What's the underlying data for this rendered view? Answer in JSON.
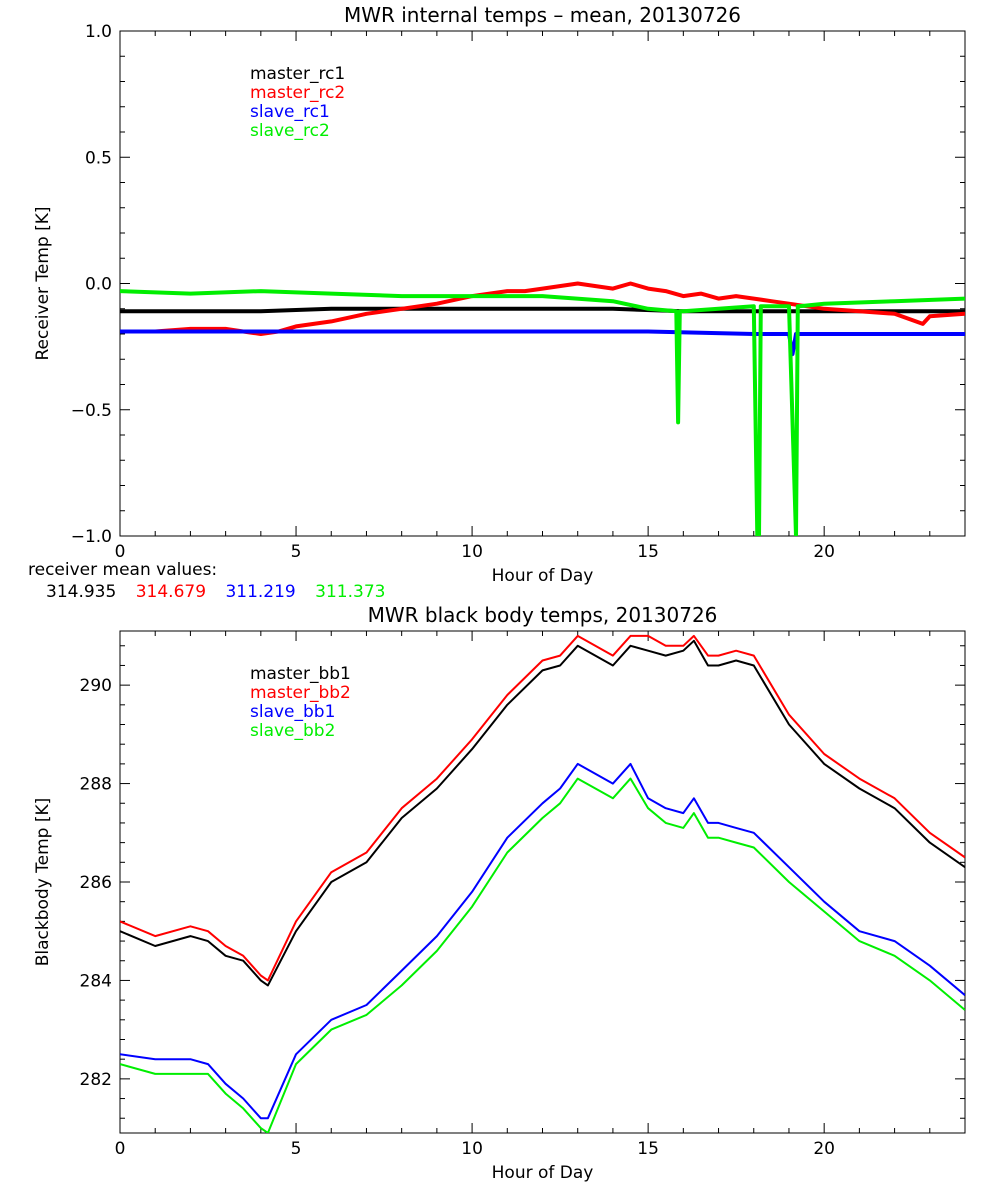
{
  "chart_data": [
    {
      "type": "line",
      "title": "MWR internal temps – mean, 20130726",
      "xlabel": "Hour of Day",
      "ylabel": "Receiver Temp [K]",
      "xlim": [
        0,
        24
      ],
      "ylim": [
        -1.0,
        1.0
      ],
      "xticks": [
        0,
        5,
        10,
        15,
        20
      ],
      "xtick_labels": [
        "0",
        "5",
        "10",
        "15",
        "20"
      ],
      "yticks": [
        -1.0,
        -0.5,
        0.0,
        0.5,
        1.0
      ],
      "ytick_labels": [
        "−1.0",
        "−0.5",
        "0.0",
        "0.5",
        "1.0"
      ],
      "grid": false,
      "legend_position": "top-left",
      "series": [
        {
          "name": "master_rc1",
          "color": "#000000",
          "x": [
            0,
            2,
            4,
            6,
            8,
            10,
            12,
            14,
            16,
            18,
            20,
            22,
            24
          ],
          "y": [
            -0.11,
            -0.11,
            -0.11,
            -0.1,
            -0.1,
            -0.1,
            -0.1,
            -0.1,
            -0.11,
            -0.11,
            -0.11,
            -0.11,
            -0.11
          ]
        },
        {
          "name": "master_rc2",
          "color": "#ff0000",
          "x": [
            0,
            1,
            2,
            3,
            3.5,
            4,
            4.5,
            5,
            6,
            7,
            8,
            9,
            10,
            11,
            11.5,
            12,
            13,
            14,
            14.5,
            15,
            15.5,
            16,
            16.5,
            17,
            17.5,
            18,
            18.5,
            19,
            20,
            21,
            22,
            22.8,
            23,
            24
          ],
          "y": [
            -0.19,
            -0.19,
            -0.18,
            -0.18,
            -0.19,
            -0.2,
            -0.19,
            -0.17,
            -0.15,
            -0.12,
            -0.1,
            -0.08,
            -0.05,
            -0.03,
            -0.03,
            -0.02,
            0.0,
            -0.02,
            0.0,
            -0.02,
            -0.03,
            -0.05,
            -0.04,
            -0.06,
            -0.05,
            -0.06,
            -0.07,
            -0.08,
            -0.1,
            -0.11,
            -0.12,
            -0.16,
            -0.13,
            -0.12
          ]
        },
        {
          "name": "slave_rc1",
          "color": "#0000ff",
          "x": [
            0,
            3,
            6,
            9,
            12,
            15,
            18,
            19,
            19.1,
            19.2,
            21,
            24
          ],
          "y": [
            -0.19,
            -0.19,
            -0.19,
            -0.19,
            -0.19,
            -0.19,
            -0.2,
            -0.2,
            -0.28,
            -0.2,
            -0.2,
            -0.2
          ]
        },
        {
          "name": "slave_rc2",
          "color": "#00ee00",
          "x": [
            0,
            2,
            4,
            6,
            8,
            10,
            12,
            14,
            15,
            15.8,
            15.85,
            15.9,
            16,
            17,
            18,
            18.1,
            18.15,
            18.2,
            19,
            19.2,
            19.25,
            19.3,
            20,
            22,
            24
          ],
          "y": [
            -0.03,
            -0.04,
            -0.03,
            -0.04,
            -0.05,
            -0.05,
            -0.05,
            -0.07,
            -0.1,
            -0.11,
            -0.55,
            -0.11,
            -0.11,
            -0.1,
            -0.09,
            -1.0,
            -1.0,
            -0.09,
            -0.09,
            -1.0,
            -0.09,
            -0.09,
            -0.08,
            -0.07,
            -0.06
          ]
        }
      ],
      "mean_label": "receiver mean values:",
      "mean_values": [
        {
          "text": "314.935",
          "color": "#000000"
        },
        {
          "text": "314.679",
          "color": "#ff0000"
        },
        {
          "text": "311.219",
          "color": "#0000ff"
        },
        {
          "text": "311.373",
          "color": "#00ee00"
        }
      ]
    },
    {
      "type": "line",
      "title": "MWR black body temps, 20130726",
      "xlabel": "Hour of Day",
      "ylabel": "Blackbody Temp [K]",
      "xlim": [
        0,
        24
      ],
      "ylim": [
        280.9,
        291.1
      ],
      "xticks": [
        0,
        5,
        10,
        15,
        20
      ],
      "xtick_labels": [
        "0",
        "5",
        "10",
        "15",
        "20"
      ],
      "yticks": [
        282,
        284,
        286,
        288,
        290
      ],
      "ytick_labels": [
        "282",
        "284",
        "286",
        "288",
        "290"
      ],
      "grid": false,
      "legend_position": "top-left",
      "series": [
        {
          "name": "master_bb1",
          "color": "#000000",
          "x": [
            0,
            1,
            2,
            2.5,
            3,
            3.5,
            4,
            4.2,
            5,
            6,
            7,
            8,
            9,
            10,
            11,
            12,
            12.5,
            13,
            14,
            14.5,
            15,
            15.5,
            16,
            16.3,
            16.7,
            17,
            17.5,
            18,
            19,
            20,
            21,
            22,
            23,
            24
          ],
          "y": [
            285.0,
            284.7,
            284.9,
            284.8,
            284.5,
            284.4,
            284.0,
            283.9,
            285.0,
            286.0,
            286.4,
            287.3,
            287.9,
            288.7,
            289.6,
            290.3,
            290.4,
            290.8,
            290.4,
            290.8,
            290.7,
            290.6,
            290.7,
            290.9,
            290.4,
            290.4,
            290.5,
            290.4,
            289.2,
            288.4,
            287.9,
            287.5,
            286.8,
            286.3
          ]
        },
        {
          "name": "master_bb2",
          "color": "#ff0000",
          "x": [
            0,
            1,
            2,
            2.5,
            3,
            3.5,
            4,
            4.2,
            5,
            6,
            7,
            8,
            9,
            10,
            11,
            12,
            12.5,
            13,
            14,
            14.5,
            15,
            15.5,
            16,
            16.3,
            16.7,
            17,
            17.5,
            18,
            19,
            20,
            21,
            22,
            23,
            24
          ],
          "y": [
            285.2,
            284.9,
            285.1,
            285.0,
            284.7,
            284.5,
            284.1,
            284.0,
            285.2,
            286.2,
            286.6,
            287.5,
            288.1,
            288.9,
            289.8,
            290.5,
            290.6,
            291.0,
            290.6,
            291.0,
            291.0,
            290.8,
            290.8,
            291.0,
            290.6,
            290.6,
            290.7,
            290.6,
            289.4,
            288.6,
            288.1,
            287.7,
            287.0,
            286.5
          ]
        },
        {
          "name": "slave_bb1",
          "color": "#0000ff",
          "x": [
            0,
            1,
            2,
            2.5,
            3,
            3.5,
            4,
            4.2,
            5,
            6,
            7,
            8,
            9,
            10,
            11,
            12,
            12.5,
            13,
            14,
            14.5,
            15,
            15.5,
            16,
            16.3,
            16.7,
            17,
            17.5,
            18,
            19,
            20,
            21,
            22,
            23,
            24
          ],
          "y": [
            282.5,
            282.4,
            282.4,
            282.3,
            281.9,
            281.6,
            281.2,
            281.2,
            282.5,
            283.2,
            283.5,
            284.2,
            284.9,
            285.8,
            286.9,
            287.6,
            287.9,
            288.4,
            288.0,
            288.4,
            287.7,
            287.5,
            287.4,
            287.7,
            287.2,
            287.2,
            287.1,
            287.0,
            286.3,
            285.6,
            285.0,
            284.8,
            284.3,
            283.7
          ]
        },
        {
          "name": "slave_bb2",
          "color": "#00ee00",
          "x": [
            0,
            1,
            2,
            2.5,
            3,
            3.5,
            4,
            4.2,
            5,
            6,
            7,
            8,
            9,
            10,
            11,
            12,
            12.5,
            13,
            14,
            14.5,
            15,
            15.5,
            16,
            16.3,
            16.7,
            17,
            17.5,
            18,
            19,
            20,
            21,
            22,
            23,
            24
          ],
          "y": [
            282.3,
            282.1,
            282.1,
            282.1,
            281.7,
            281.4,
            281.0,
            280.9,
            282.3,
            283.0,
            283.3,
            283.9,
            284.6,
            285.5,
            286.6,
            287.3,
            287.6,
            288.1,
            287.7,
            288.1,
            287.5,
            287.2,
            287.1,
            287.4,
            286.9,
            286.9,
            286.8,
            286.7,
            286.0,
            285.4,
            284.8,
            284.5,
            284.0,
            283.4
          ]
        }
      ]
    }
  ]
}
